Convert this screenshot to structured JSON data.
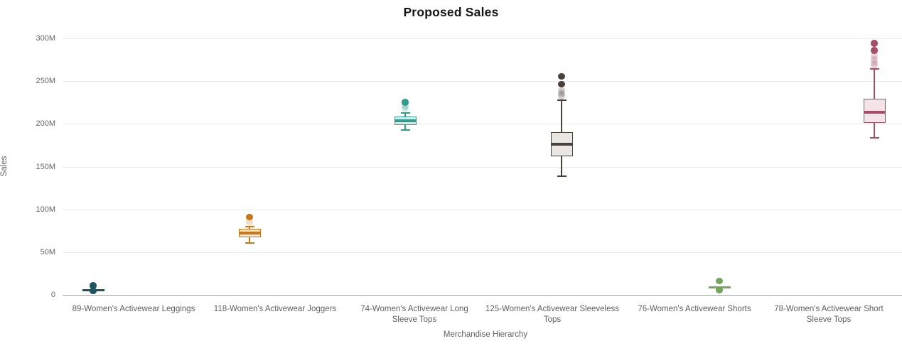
{
  "chart_data": {
    "type": "box",
    "title": "Proposed Sales",
    "xlabel": "Merchandise Hierarchy",
    "ylabel": "Sales",
    "unit": "millions",
    "grid": true,
    "y_axis": {
      "min": 0,
      "max": 300,
      "tick_interval": 50,
      "tick_values": [
        0,
        50,
        100,
        150,
        200,
        250,
        300
      ],
      "tick_labels": [
        "0",
        "50M",
        "100M",
        "150M",
        "200M",
        "250M",
        "300M"
      ]
    },
    "categories": [
      "89-Women's Activewear Leggings",
      "118-Women's Activewear Joggers",
      "74-Women's Activewear Long\nSleeve Tops",
      "125-Women's Activewear Sleeveless\nTops",
      "76-Women's Activewear Shorts",
      "78-Women's Activewear Short\nSleeve Tops"
    ],
    "series": [
      {
        "name": "89-Women's Activewear Leggings",
        "color": "#1f5560",
        "fill": "#cfdfe1",
        "whisker_low": 4.2,
        "q1": 4.2,
        "median": 5.4,
        "q3": 6.6,
        "whisker_high": 6.6,
        "outliers": [
          10.8,
          4.5
        ],
        "outliers_faint": []
      },
      {
        "name": "118-Women's Activewear Joggers",
        "color": "#c9761a",
        "fill": "#f8e7ca",
        "whisker_low": 61,
        "q1": 67.3,
        "median": 72.3,
        "q3": 76.9,
        "whisker_high": 80,
        "outliers": [
          91
        ],
        "outliers_faint": [
          85.5
        ]
      },
      {
        "name": "74-Women's Activewear Long Sleeve Tops",
        "color": "#2f9c8f",
        "fill": "#d6ece8",
        "whisker_low": 192.8,
        "q1": 198.6,
        "median": 203.6,
        "q3": 208.2,
        "whisker_high": 213,
        "outliers": [
          225.2
        ],
        "outliers_faint": [
          221,
          218.3
        ]
      },
      {
        "name": "125-Women's Activewear Sleeveless Tops",
        "color": "#49413a",
        "fill": "#eae7e2",
        "whisker_low": 138.4,
        "q1": 162.1,
        "median": 175.8,
        "q3": 189.9,
        "whisker_high": 227.3,
        "outliers": [
          255.4,
          246.4
        ],
        "outliers_faint": [
          239,
          235.8,
          232.7
        ]
      },
      {
        "name": "76-Women's Activewear Shorts",
        "color": "#74a65e",
        "fill": "#ddead3",
        "whisker_low": 7.8,
        "q1": 7.8,
        "median": 9,
        "q3": 10.2,
        "whisker_high": 10.2,
        "outliers": [
          16.2,
          5.8
        ],
        "outliers_faint": []
      },
      {
        "name": "78-Women's Activewear Short Sleeve Tops",
        "color": "#a64e66",
        "fill": "#f4e3e9",
        "whisker_low": 183.7,
        "q1": 200.8,
        "median": 213.2,
        "q3": 229.1,
        "whisker_high": 264.5,
        "outliers": [
          294.2,
          285.8
        ],
        "outliers_faint": [
          279.1,
          275,
          271.5,
          268.5
        ]
      }
    ],
    "legend": "none"
  }
}
